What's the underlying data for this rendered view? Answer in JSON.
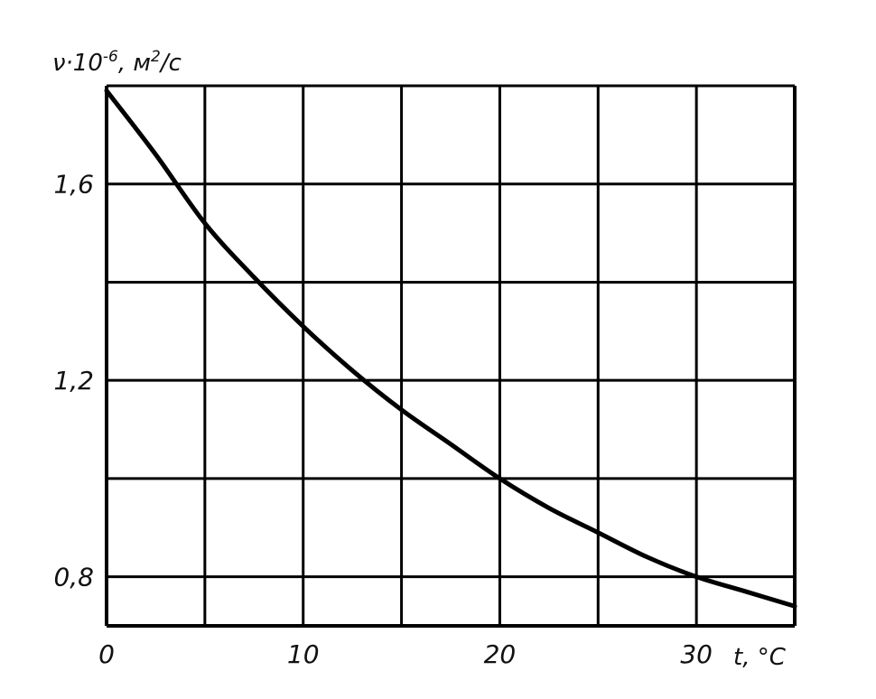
{
  "chart_data": {
    "type": "line",
    "ylabel": "ν·10⁻⁶, м²/с",
    "xlabel": "t, °C",
    "xlim": [
      0,
      35
    ],
    "ylim": [
      0.7,
      1.8
    ],
    "x_ticks": [
      0,
      10,
      20,
      30
    ],
    "x_tick_labels": [
      "0",
      "10",
      "20",
      "30"
    ],
    "y_ticks": [
      0.8,
      1.2,
      1.6
    ],
    "y_tick_labels": [
      "0,8",
      "1,2",
      "1,6"
    ],
    "grid": true,
    "x_grid_step": 5,
    "y_grid_step": 0.2,
    "series": [
      {
        "x": [
          0,
          2.5,
          5,
          7.5,
          10,
          12.5,
          15,
          17.5,
          20,
          22.5,
          25,
          27.5,
          30,
          32.5,
          35
        ],
        "values": [
          1.79,
          1.66,
          1.52,
          1.41,
          1.31,
          1.22,
          1.14,
          1.07,
          1.0,
          0.94,
          0.89,
          0.84,
          0.8,
          0.77,
          0.74
        ],
        "color": "#000000"
      }
    ]
  }
}
